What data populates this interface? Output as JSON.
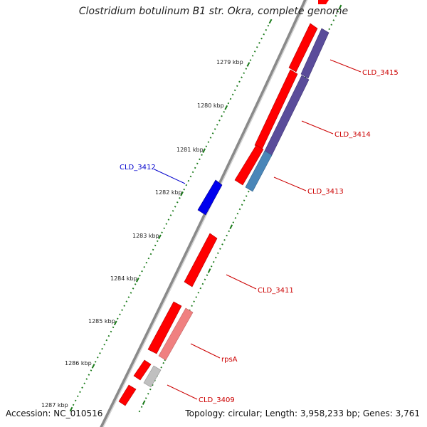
{
  "title": "Clostridium botulinum B1 str. Okra, complete genome",
  "footer": {
    "accession": "Accession: NC_010516",
    "summary": "Topology: circular; Length: 3,958,233 bp; Genes: 3,761"
  },
  "ticks": [
    "1279 kbp",
    "1280 kbp",
    "1281 kbp",
    "1282 kbp",
    "1283 kbp",
    "1284 kbp",
    "1285 kbp",
    "1286 kbp",
    "1287 kbp"
  ],
  "gene_labels": {
    "cld_3415": "CLD_3415",
    "cld_3414": "CLD_3414",
    "cld_3413": "CLD_3413",
    "cld_3412": "CLD_3412",
    "cld_3411": "CLD_3411",
    "rpsa": "rpsA",
    "cld_3409": "CLD_3409"
  },
  "colors": {
    "backbone": "#8a8a8a",
    "forward_gene": "#ff0000",
    "reverse_gene": "#0000ee",
    "cog_purple": "#5a4c9a",
    "cog_steelblue": "#4a86b8",
    "cog_pink": "#f08080",
    "cog_gray": "#c0c0c0",
    "tick_green": "#1a7a1a",
    "label_red": "#cc0000",
    "label_blue": "#0000cc"
  }
}
